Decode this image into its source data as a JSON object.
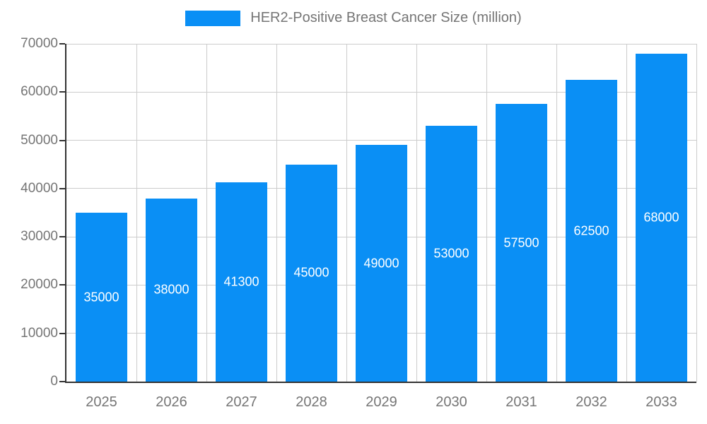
{
  "colors": {
    "bar": "#0A8FF5",
    "label_text": "#757575",
    "grid": "#CCCCCC",
    "axis": "#333333",
    "value_text": "#FFFFFF",
    "background": "#FFFFFF"
  },
  "chart_data": {
    "type": "bar",
    "title": "HER2-Positive Breast Cancer Size (million)",
    "categories": [
      "2025",
      "2026",
      "2027",
      "2028",
      "2029",
      "2030",
      "2031",
      "2032",
      "2033"
    ],
    "values": [
      35000,
      38000,
      41300,
      45000,
      49000,
      53000,
      57500,
      62500,
      68000
    ],
    "xlabel": "",
    "ylabel": "",
    "ylim": [
      0,
      70000
    ],
    "ytick_step": 10000,
    "yticks": [
      0,
      10000,
      20000,
      30000,
      40000,
      50000,
      60000,
      70000
    ],
    "grid": true,
    "legend_position": "top",
    "bar_labels_visible": true
  }
}
